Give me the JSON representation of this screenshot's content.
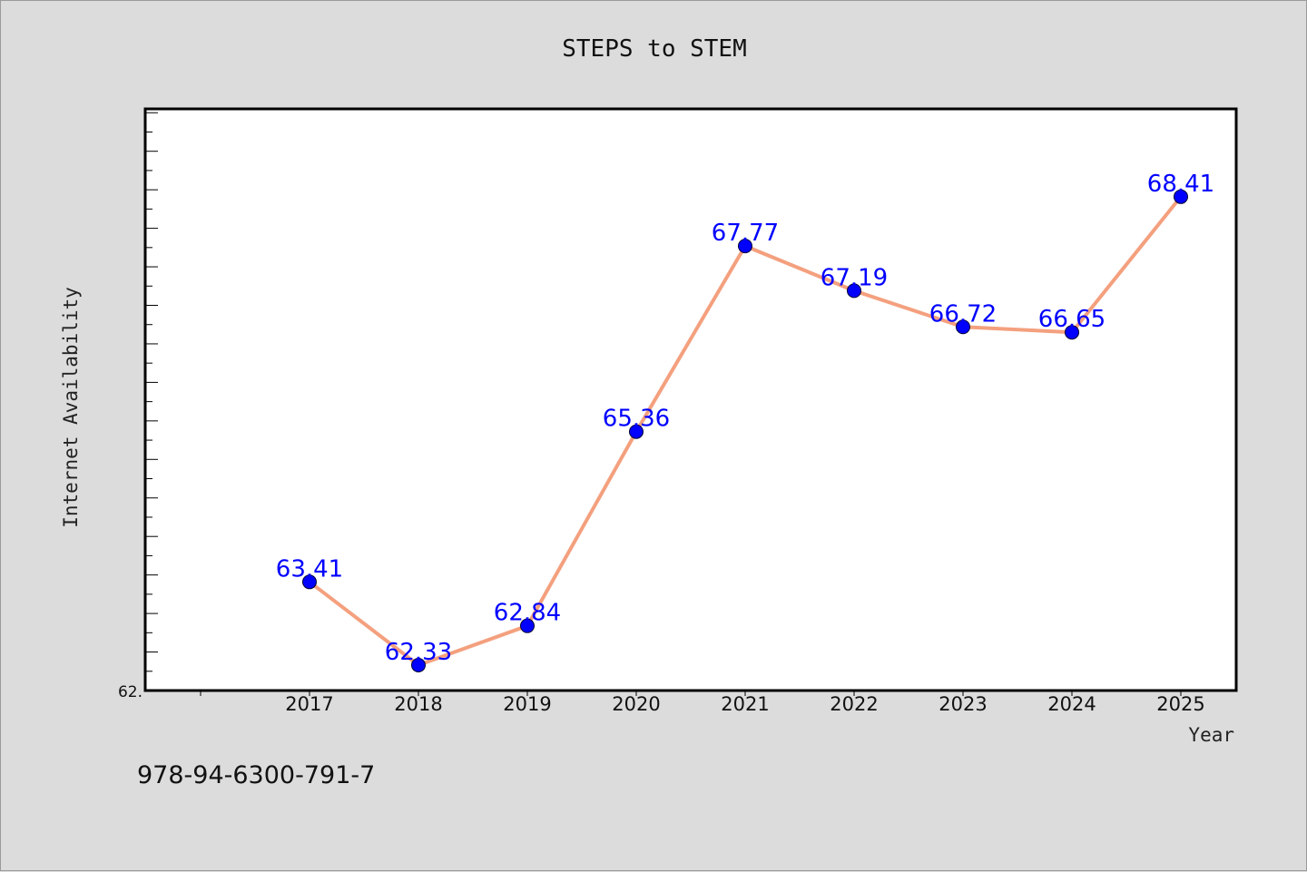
{
  "chart_data": {
    "type": "line",
    "title": "STEPS to STEM",
    "xlabel": "Year",
    "ylabel": "Internet Availability",
    "categories": [
      "2017",
      "2018",
      "2019",
      "2020",
      "2021",
      "2022",
      "2023",
      "2024",
      "2025"
    ],
    "series": [
      {
        "values": [
          63.41,
          62.33,
          62.84,
          65.36,
          67.77,
          67.19,
          66.72,
          66.65,
          68.41
        ],
        "labels": [
          "63.41",
          "62.33",
          "62.84",
          "65.36",
          "67.77",
          "67.19",
          "66.72",
          "66.65",
          "68.41"
        ]
      }
    ],
    "ylim": [
      62.0,
      69.55
    ],
    "y_tick_label": "62.",
    "grid": false,
    "legend": "none",
    "colors": {
      "line": "#f4a07e",
      "marker": "#0000ff",
      "data_label": "#0000ff",
      "background": "#dcdcdc",
      "plot_background": "#ffffff"
    }
  },
  "footer": {
    "isbn": "978-94-6300-791-7"
  }
}
